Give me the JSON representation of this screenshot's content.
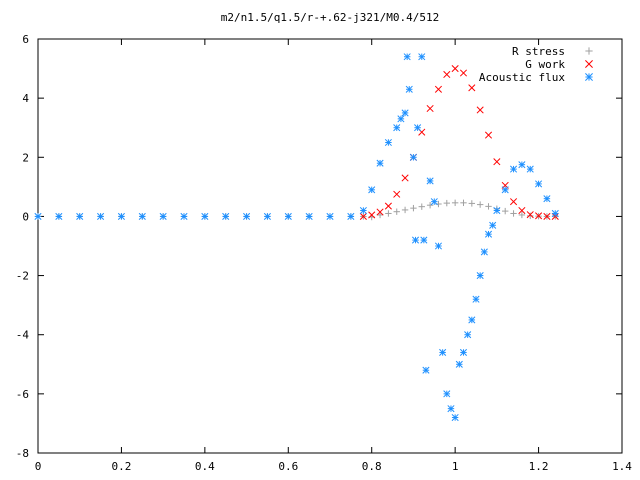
{
  "chart_data": {
    "type": "scatter",
    "title": "m2/n1.5/q1.5/r-+.62-j321/M0.4/512",
    "xlabel": "",
    "ylabel": "",
    "xlim": [
      0,
      1.4
    ],
    "ylim": [
      -8,
      6
    ],
    "xticks": [
      0,
      0.2,
      0.4,
      0.6,
      0.8,
      1,
      1.2,
      1.4
    ],
    "yticks": [
      -8,
      -6,
      -4,
      -2,
      0,
      2,
      4,
      6
    ],
    "xtick_labels": [
      "0",
      "0.2",
      "0.4",
      "0.6",
      "0.8",
      "1",
      "1.2",
      "1.4"
    ],
    "ytick_labels": [
      "-8",
      "-6",
      "-4",
      "-2",
      "0",
      "2",
      "4",
      "6"
    ],
    "grid": false,
    "legend_position": "top-right",
    "series": [
      {
        "name": "R stress",
        "marker": "plus",
        "color": "#a0a0a0",
        "x": [
          0.0,
          0.05,
          0.1,
          0.15,
          0.2,
          0.25,
          0.3,
          0.35,
          0.4,
          0.45,
          0.5,
          0.55,
          0.6,
          0.65,
          0.7,
          0.75,
          0.78,
          0.8,
          0.82,
          0.84,
          0.86,
          0.88,
          0.9,
          0.92,
          0.94,
          0.96,
          0.98,
          1.0,
          1.02,
          1.04,
          1.06,
          1.08,
          1.1,
          1.12,
          1.14,
          1.16,
          1.18,
          1.2,
          1.22,
          1.24
        ],
        "y": [
          0,
          0,
          0,
          0,
          0,
          0,
          0,
          0,
          0,
          0,
          0,
          0,
          0,
          0,
          0,
          0,
          0,
          -0.02,
          0.05,
          0.1,
          0.16,
          0.22,
          0.28,
          0.33,
          0.38,
          0.42,
          0.45,
          0.46,
          0.46,
          0.44,
          0.4,
          0.34,
          0.26,
          0.18,
          0.1,
          0.05,
          0.02,
          0.01,
          0,
          0
        ]
      },
      {
        "name": "G work",
        "marker": "cross",
        "color": "#ff0000",
        "x": [
          0.78,
          0.8,
          0.82,
          0.84,
          0.86,
          0.88,
          0.9,
          0.92,
          0.94,
          0.96,
          0.98,
          1.0,
          1.02,
          1.04,
          1.06,
          1.08,
          1.1,
          1.12,
          1.14,
          1.16,
          1.18,
          1.2,
          1.22,
          1.24
        ],
        "y": [
          0.0,
          0.05,
          0.15,
          0.35,
          0.75,
          1.3,
          2.0,
          2.85,
          3.65,
          4.3,
          4.8,
          5.0,
          4.85,
          4.35,
          3.6,
          2.75,
          1.85,
          1.05,
          0.5,
          0.2,
          0.06,
          0.02,
          0.0,
          0.0
        ]
      },
      {
        "name": "Acoustic flux",
        "marker": "star",
        "color": "#1e90ff",
        "x": [
          0.0,
          0.05,
          0.1,
          0.15,
          0.2,
          0.25,
          0.3,
          0.35,
          0.4,
          0.45,
          0.5,
          0.55,
          0.6,
          0.65,
          0.7,
          0.75,
          0.78,
          0.8,
          0.82,
          0.84,
          0.86,
          0.87,
          0.88,
          0.885,
          0.89,
          0.9,
          0.905,
          0.91,
          0.92,
          0.925,
          0.93,
          0.94,
          0.95,
          0.96,
          0.97,
          0.98,
          0.99,
          1.0,
          1.01,
          1.02,
          1.03,
          1.04,
          1.05,
          1.06,
          1.07,
          1.08,
          1.09,
          1.1,
          1.12,
          1.14,
          1.16,
          1.18,
          1.2,
          1.22,
          1.24
        ],
        "y": [
          0,
          0,
          0,
          0,
          0,
          0,
          0,
          0,
          0,
          0,
          0,
          0,
          0,
          0,
          0,
          0,
          0.2,
          0.9,
          1.8,
          2.5,
          3.0,
          3.3,
          3.5,
          5.4,
          4.3,
          2.0,
          -0.8,
          3.0,
          5.4,
          -0.8,
          -5.2,
          1.2,
          0.5,
          -1.0,
          -4.6,
          -6.0,
          -6.5,
          -6.8,
          -5.0,
          -4.6,
          -4.0,
          -3.5,
          -2.8,
          -2.0,
          -1.2,
          -0.6,
          -0.3,
          0.2,
          0.9,
          1.6,
          1.75,
          1.6,
          1.1,
          0.6,
          0.1
        ]
      }
    ]
  }
}
